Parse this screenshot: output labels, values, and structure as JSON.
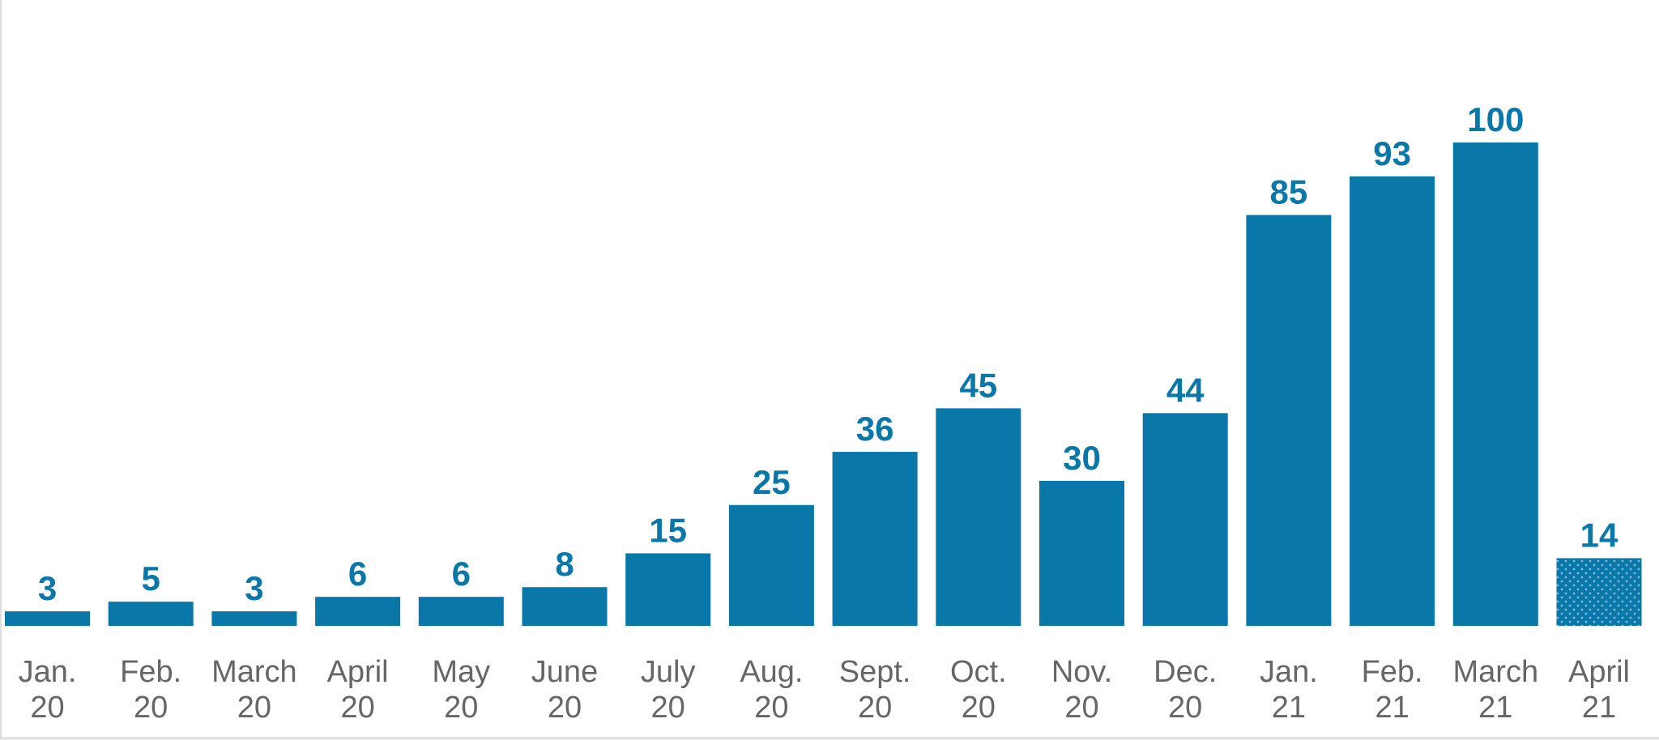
{
  "chart_data": {
    "type": "bar",
    "categories": [
      [
        "Jan.",
        "20"
      ],
      [
        "Feb.",
        "20"
      ],
      [
        "March",
        "20"
      ],
      [
        "April",
        "20"
      ],
      [
        "May",
        "20"
      ],
      [
        "June",
        "20"
      ],
      [
        "July",
        "20"
      ],
      [
        "Aug.",
        "20"
      ],
      [
        "Sept.",
        "20"
      ],
      [
        "Oct.",
        "20"
      ],
      [
        "Nov.",
        "20"
      ],
      [
        "Dec.",
        "20"
      ],
      [
        "Jan.",
        "21"
      ],
      [
        "Feb.",
        "21"
      ],
      [
        "March",
        "21"
      ],
      [
        "April",
        "21"
      ]
    ],
    "values": [
      3,
      5,
      3,
      6,
      6,
      8,
      15,
      25,
      36,
      45,
      30,
      44,
      85,
      93,
      100,
      14
    ],
    "dotted": [
      false,
      false,
      false,
      false,
      false,
      false,
      false,
      false,
      false,
      false,
      false,
      false,
      false,
      false,
      false,
      true
    ],
    "color": "#0a77a9"
  }
}
